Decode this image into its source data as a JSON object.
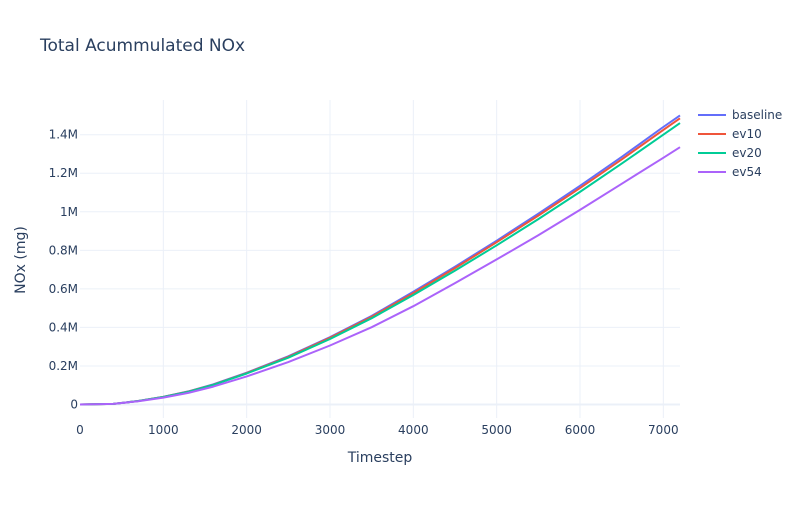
{
  "chart_data": {
    "type": "line",
    "title": "Total Acummulated NOx",
    "xlabel": "Timestep",
    "ylabel": "NOx (mg)",
    "xlim": [
      0,
      7200
    ],
    "ylim": [
      -70000,
      1580000
    ],
    "x_ticks": [
      0,
      1000,
      2000,
      3000,
      4000,
      5000,
      6000,
      7000
    ],
    "x_tick_labels": [
      "0",
      "1000",
      "2000",
      "3000",
      "4000",
      "5000",
      "6000",
      "7000"
    ],
    "y_ticks": [
      0,
      200000,
      400000,
      600000,
      800000,
      1000000,
      1200000,
      1400000
    ],
    "y_tick_labels": [
      "0",
      "0.2M",
      "0.4M",
      "0.6M",
      "0.8M",
      "1M",
      "1.2M",
      "1.4M"
    ],
    "grid": true,
    "legend_position": "top-right",
    "series": [
      {
        "name": "baseline",
        "color": "#636efa",
        "x": [
          0,
          400,
          700,
          1000,
          1300,
          1600,
          2000,
          2500,
          3000,
          3500,
          4000,
          4500,
          5000,
          5500,
          6000,
          6500,
          7000,
          7200
        ],
        "y": [
          0,
          3000,
          18000,
          40000,
          68000,
          105000,
          165000,
          250000,
          350000,
          460000,
          585000,
          715000,
          850000,
          990000,
          1135000,
          1285000,
          1440000,
          1500000
        ]
      },
      {
        "name": "ev10",
        "color": "#ef553b",
        "x": [
          0,
          400,
          700,
          1000,
          1300,
          1600,
          2000,
          2500,
          3000,
          3500,
          4000,
          4500,
          5000,
          5500,
          6000,
          6500,
          7000,
          7200
        ],
        "y": [
          0,
          3000,
          18000,
          40000,
          67000,
          103000,
          163000,
          247000,
          346000,
          455000,
          578000,
          708000,
          842000,
          980000,
          1123000,
          1272000,
          1425000,
          1485000
        ]
      },
      {
        "name": "ev20",
        "color": "#00cc96",
        "x": [
          0,
          400,
          700,
          1000,
          1300,
          1600,
          2000,
          2500,
          3000,
          3500,
          4000,
          4500,
          5000,
          5500,
          6000,
          6500,
          7000,
          7200
        ],
        "y": [
          0,
          3000,
          18000,
          39000,
          66000,
          102000,
          161000,
          243000,
          340000,
          448000,
          568000,
          695000,
          826000,
          962000,
          1103000,
          1250000,
          1400000,
          1460000
        ]
      },
      {
        "name": "ev54",
        "color": "#ab63fa",
        "x": [
          0,
          400,
          700,
          1000,
          1300,
          1600,
          2000,
          2500,
          3000,
          3500,
          4000,
          4500,
          5000,
          5500,
          6000,
          6500,
          7000,
          7200
        ],
        "y": [
          0,
          3000,
          17000,
          36000,
          60000,
          93000,
          146000,
          220000,
          306000,
          401000,
          510000,
          630000,
          753000,
          878000,
          1010000,
          1145000,
          1280000,
          1335000
        ]
      }
    ]
  }
}
